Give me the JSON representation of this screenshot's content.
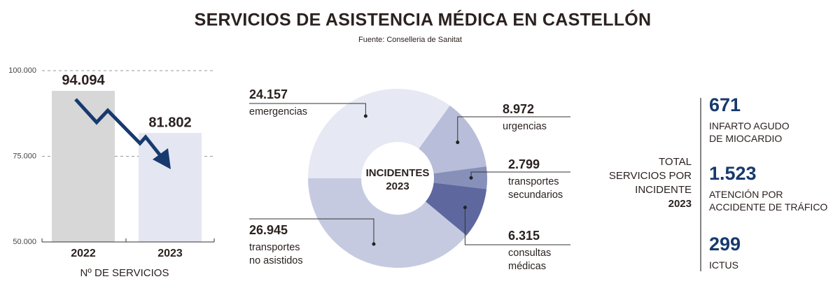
{
  "title": "SERVICIOS DE ASISTENCIA MÉDICA EN CASTELLÓN",
  "subtitle": "Fuente: Conselleria de Sanitat",
  "chart_data": [
    {
      "type": "bar",
      "categories": [
        "2022",
        "2023"
      ],
      "values": [
        94094,
        81802
      ],
      "value_labels": [
        "94.094",
        "81.802"
      ],
      "colors": [
        "#d7d7d7",
        "#e4e6f1"
      ],
      "ylim": [
        50000,
        100000
      ],
      "yticks": [
        {
          "value": 50000,
          "label": "50.000"
        },
        {
          "value": 75000,
          "label": "75.000"
        },
        {
          "value": 100000,
          "label": "100.000"
        }
      ],
      "grid": true,
      "xlabel": "Nº DE SERVICIOS"
    },
    {
      "type": "donut",
      "center_label": "INCIDENTES 2023",
      "categories": [
        "emergencias",
        "urgencias",
        "transportes secundarios",
        "consultas médicas",
        "transportes no asistidos"
      ],
      "values": [
        24157,
        8972,
        2799,
        6315,
        26945
      ],
      "value_labels": [
        "24.157",
        "8.972",
        "2.799",
        "6.315",
        "26.945"
      ],
      "colors": [
        "#e6e8f3",
        "#b8bdd9",
        "#8790b9",
        "#5e689f",
        "#c6cae1"
      ]
    }
  ],
  "stats": {
    "title": "TOTAL SERVICIOS POR INCIDENTE 2023",
    "items": [
      {
        "value": 671,
        "label": "INFARTO AGUDO DE MIOCARDIO"
      },
      {
        "value": {
          "value": 1523,
          "label": "1.523"
        },
        "label": "ATENCIÓN POR ACCIDENTE DE TRÁFICO"
      },
      {
        "value": 299,
        "label": "ICTUS"
      }
    ]
  }
}
